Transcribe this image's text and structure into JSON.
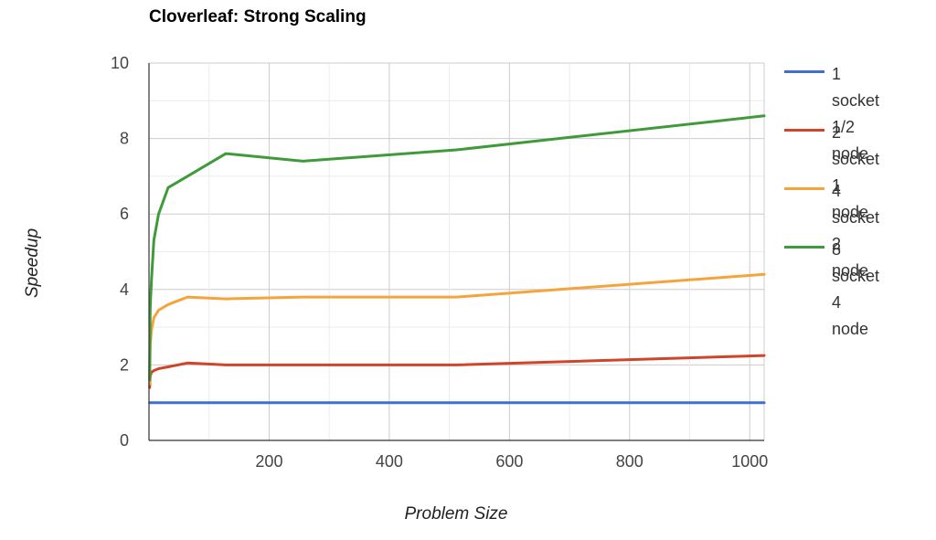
{
  "chart_data": {
    "type": "line",
    "title": "Cloverleaf: Strong Scaling",
    "xlabel": "Problem Size",
    "ylabel": "Speedup",
    "xlim": [
      0,
      1024
    ],
    "ylim": [
      0,
      10
    ],
    "x_ticks": [
      "200",
      "400",
      "600",
      "800",
      "1000"
    ],
    "y_ticks": [
      "0",
      "2",
      "4",
      "6",
      "8",
      "10"
    ],
    "grid": true,
    "legend_position": "right",
    "x": [
      1,
      2,
      4,
      8,
      16,
      32,
      64,
      128,
      256,
      512,
      1024
    ],
    "series": [
      {
        "name_lines": [
          "1 socket",
          "1/2 node"
        ],
        "color": "#3f6fcf",
        "values": [
          1.0,
          1.0,
          1.0,
          1.0,
          1.0,
          1.0,
          1.0,
          1.0,
          1.0,
          1.0,
          1.0
        ]
      },
      {
        "name_lines": [
          "2 socket",
          "1 node"
        ],
        "color": "#d0442a",
        "values": [
          1.4,
          1.7,
          1.8,
          1.85,
          1.9,
          1.95,
          2.05,
          2.0,
          2.0,
          2.0,
          2.25
        ]
      },
      {
        "name_lines": [
          "4 socket",
          "2 node"
        ],
        "color": "#f5a43b",
        "values": [
          1.5,
          2.5,
          2.9,
          3.25,
          3.45,
          3.6,
          3.8,
          3.75,
          3.8,
          3.8,
          4.4
        ]
      },
      {
        "name_lines": [
          "8 socket",
          "4 node"
        ],
        "color": "#3f9b3a",
        "values": [
          1.6,
          3.5,
          4.2,
          5.3,
          6.0,
          6.7,
          7.0,
          7.6,
          7.4,
          7.7,
          8.6
        ]
      }
    ]
  }
}
